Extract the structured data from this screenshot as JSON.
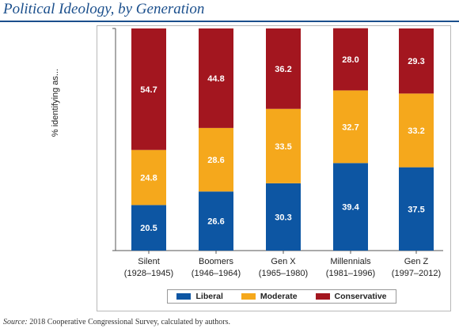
{
  "title": "Political Ideology, by Generation",
  "source": {
    "label": "Source:",
    "text": "2018 Cooperative Congressional Survey, calculated by authors."
  },
  "colors": {
    "liberal": "#0d56a3",
    "moderate": "#f5a81c",
    "conservative": "#a3161f",
    "title": "#1b4f8c"
  },
  "chart_data": {
    "type": "bar",
    "stacked": true,
    "ylabel": "% identifying as...",
    "ylim": [
      0,
      100
    ],
    "grid": false,
    "legend_position": "bottom",
    "categories": [
      [
        "Silent",
        "(1928–1945)"
      ],
      [
        "Boomers",
        "(1946–1964)"
      ],
      [
        "Gen X",
        "(1965–1980)"
      ],
      [
        "Millennials",
        "(1981–1996)"
      ],
      [
        "Gen Z",
        "(1997–2012)"
      ]
    ],
    "series": [
      {
        "name": "Liberal",
        "color": "#0d56a3",
        "values": [
          20.5,
          26.6,
          30.3,
          39.4,
          37.5
        ]
      },
      {
        "name": "Moderate",
        "color": "#f5a81c",
        "values": [
          24.8,
          28.6,
          33.5,
          32.7,
          33.2
        ]
      },
      {
        "name": "Conservative",
        "color": "#a3161f",
        "values": [
          54.7,
          44.8,
          36.2,
          28.0,
          29.3
        ]
      }
    ],
    "value_labels": [
      [
        "20.5",
        "26.6",
        "30.3",
        "39.4",
        "37.5"
      ],
      [
        "24.8",
        "28.6",
        "33.5",
        "32.7",
        "33.2"
      ],
      [
        "54.7",
        "44.8",
        "36.2",
        "28.0",
        "29.3"
      ]
    ]
  }
}
